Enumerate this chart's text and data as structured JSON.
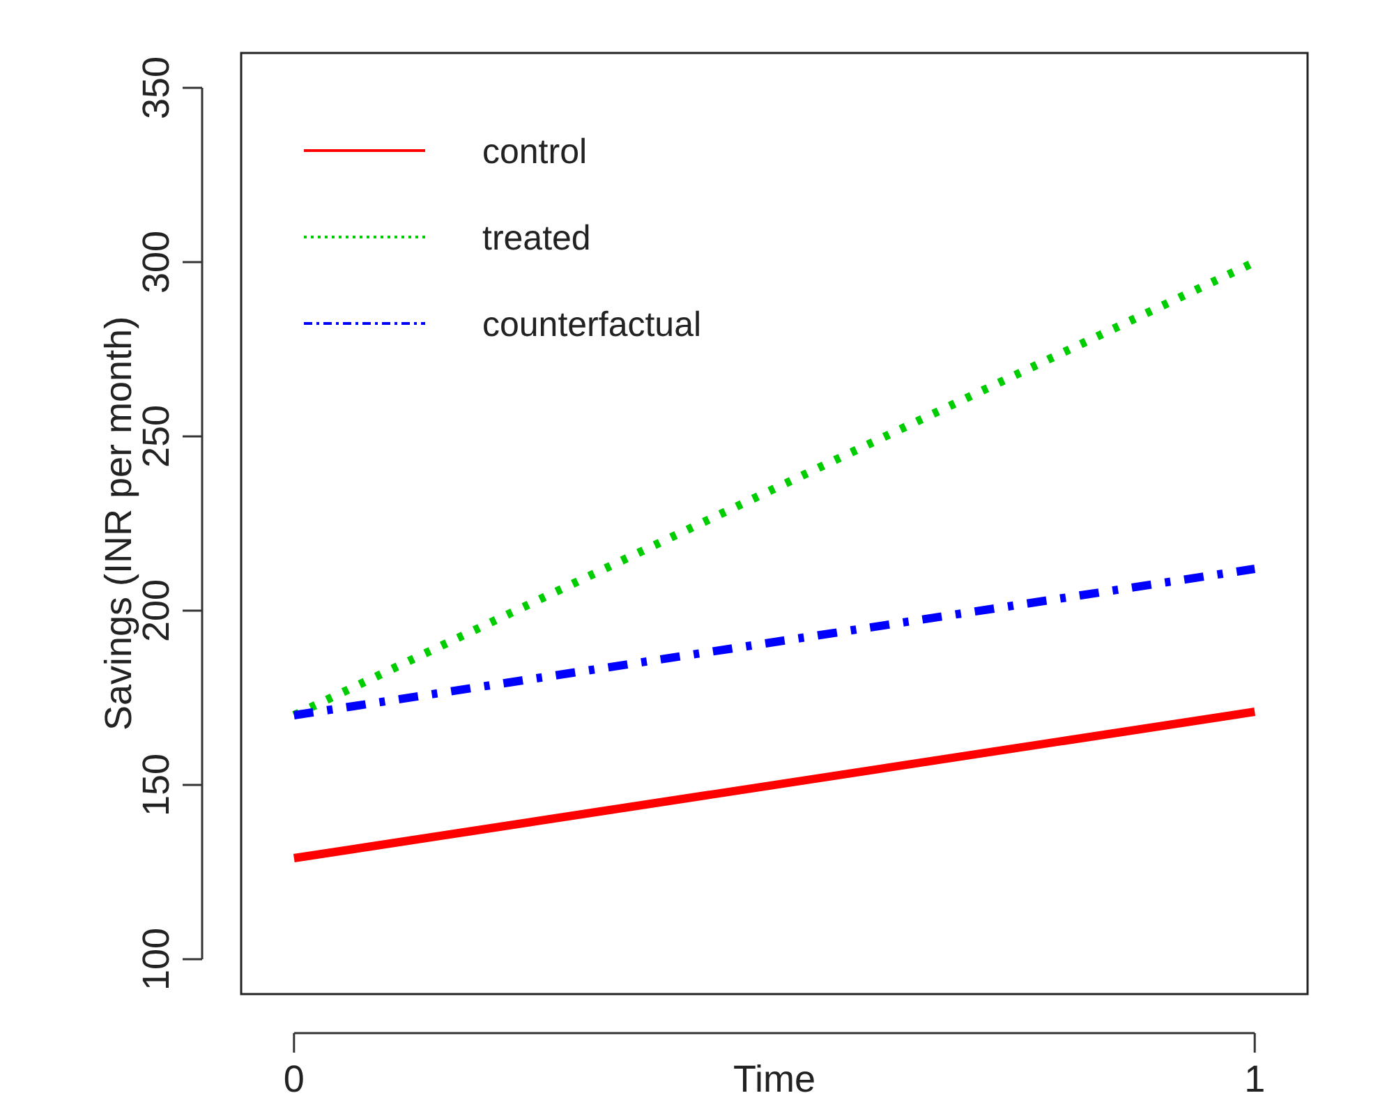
{
  "chart_data": {
    "type": "line",
    "xlabel": "Time",
    "ylabel": "Savings (INR per month)",
    "x": [
      0,
      1
    ],
    "xlim": [
      -0.055,
      1.055
    ],
    "xticks": [
      0,
      1
    ],
    "ylim": [
      90,
      360
    ],
    "yticks": [
      100,
      150,
      200,
      250,
      300,
      350
    ],
    "series": [
      {
        "name": "control",
        "color": "#ff0000",
        "values": [
          129,
          171
        ],
        "line_style": "solid"
      },
      {
        "name": "treated",
        "color": "#00cd00",
        "values": [
          170,
          300
        ],
        "line_style": "dotted"
      },
      {
        "name": "counterfactual",
        "color": "#0000ff",
        "values": [
          170,
          212
        ],
        "line_style": "dashed"
      }
    ],
    "legend": "top left",
    "grid": false
  }
}
